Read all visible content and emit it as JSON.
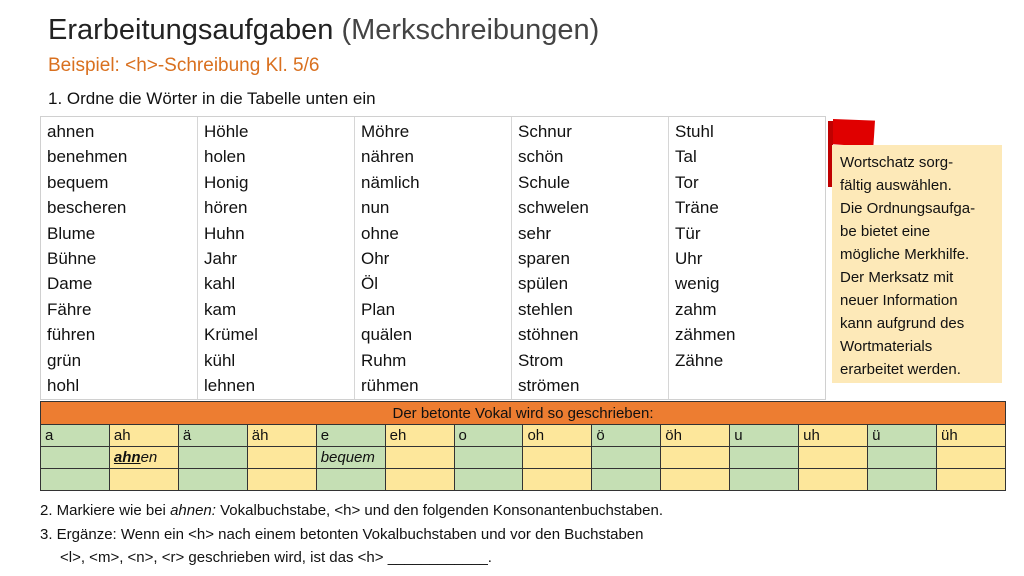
{
  "title": {
    "main": "Erarbeitungsaufgaben",
    "paren": "(Merkschreibungen)"
  },
  "subtitle": "Beispiel: <h>-Schreibung Kl. 5/6",
  "task1": "1. Ordne die Wörter in die Tabelle unten ein",
  "word_columns": [
    [
      "ahnen",
      "benehmen",
      "bequem",
      "bescheren",
      "Blume",
      "Bühne",
      "Dame",
      "Fähre",
      "führen",
      "grün",
      "hohl"
    ],
    [
      "Höhle",
      "holen",
      "Honig",
      "hören",
      "Huhn",
      "Jahr",
      "kahl",
      "kam",
      "Krümel",
      "kühl",
      "lehnen"
    ],
    [
      "Möhre",
      "nähren",
      "nämlich",
      "nun",
      "ohne",
      "Ohr",
      "Öl",
      "Plan",
      "quälen",
      "Ruhm",
      "rühmen"
    ],
    [
      "Schnur",
      "schön",
      "Schule",
      "schwelen",
      "sehr",
      "sparen",
      "spülen",
      "stehlen",
      "stöhnen",
      "Strom",
      "strömen"
    ],
    [
      "Stuhl",
      "Tal",
      "Tor",
      "Träne",
      "Tür",
      "Uhr",
      "wenig",
      "zahm",
      "zähmen",
      "Zähne"
    ]
  ],
  "note": {
    "lines": [
      "Wortschatz sorg-",
      "fältig auswählen.",
      "Die Ordnungsaufga-",
      "be bietet eine",
      "mögliche Merkhilfe.",
      "Der Merksatz mit",
      "neuer Information",
      "kann aufgrund des",
      "Wortmaterials",
      "erarbeitet werden."
    ]
  },
  "table": {
    "header": "Der betonte Vokal wird so geschrieben:",
    "vowels": [
      "a",
      "ah",
      "ä",
      "äh",
      "e",
      "eh",
      "o",
      "oh",
      "ö",
      "öh",
      "u",
      "uh",
      "ü",
      "üh"
    ],
    "example_ahnen_prefix": "ahn",
    "example_ahnen_suffix": "en",
    "example_bequem": "bequem"
  },
  "task2": {
    "prefix": "2. Markiere wie bei ",
    "italic": "ahnen:",
    "suffix": " Vokalbuchstabe, <h> und den folgenden Konsonantenbuchstaben."
  },
  "task3": {
    "line1": "3. Ergänze: Wenn ein <h> nach einem betonten Vokalbuchstaben und vor den Buchstaben",
    "line2": "<l>, <m>, <n>, <r> geschrieben wird,  ist das <h> ____________."
  },
  "colors": {
    "accent": "#ed7d31",
    "green": "#c5dfb4",
    "yellow": "#fde79b",
    "note": "#fde9b8",
    "flag": "#e00000"
  }
}
